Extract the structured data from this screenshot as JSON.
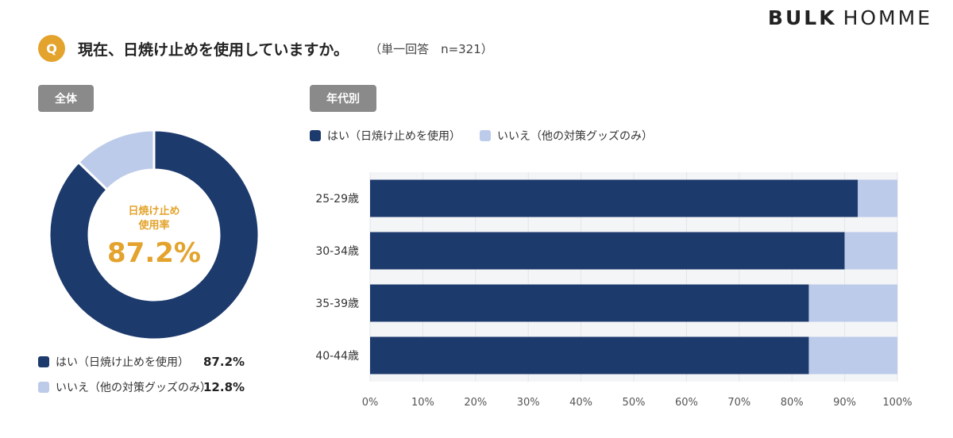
{
  "brand": {
    "bold": "BULK",
    "light": "HOMME"
  },
  "question": {
    "badge": "Q",
    "title": "現在、日焼け止めを使用していますか。",
    "note": "（単一回答　n=321）"
  },
  "tabs": {
    "overall": "全体",
    "by_age": "年代別"
  },
  "colors": {
    "yes": "#1d3a6d",
    "no": "#bccbea",
    "accent": "#e3a32c",
    "tag": "#8a8a8a"
  },
  "chart_data": [
    {
      "type": "pie",
      "variant": "donut",
      "center_label_line1": "日焼け止め",
      "center_label_line2": "使用率",
      "center_value": "87.2%",
      "labels": [
        "はい（日焼け止めを使用）",
        "いいえ（他の対策グッズのみ）"
      ],
      "values": [
        87.2,
        12.8
      ],
      "value_labels": [
        "87.2%",
        "12.8%"
      ],
      "legend": "bottom"
    },
    {
      "type": "bar",
      "orientation": "horizontal",
      "stacked": true,
      "categories": [
        "25-29歳",
        "30-34歳",
        "35-39歳",
        "40-44歳"
      ],
      "series": [
        {
          "name": "はい（日焼け止めを使用）",
          "values": [
            92.5,
            90.0,
            83.2,
            83.2
          ]
        },
        {
          "name": "いいえ（他の対策グッズのみ）",
          "values": [
            7.5,
            10.0,
            16.8,
            16.8
          ]
        }
      ],
      "xlim": [
        0,
        100
      ],
      "xticks": [
        "0%",
        "10%",
        "20%",
        "30%",
        "40%",
        "50%",
        "60%",
        "70%",
        "80%",
        "90%",
        "100%"
      ],
      "grid": true,
      "legend": "top-left"
    }
  ]
}
